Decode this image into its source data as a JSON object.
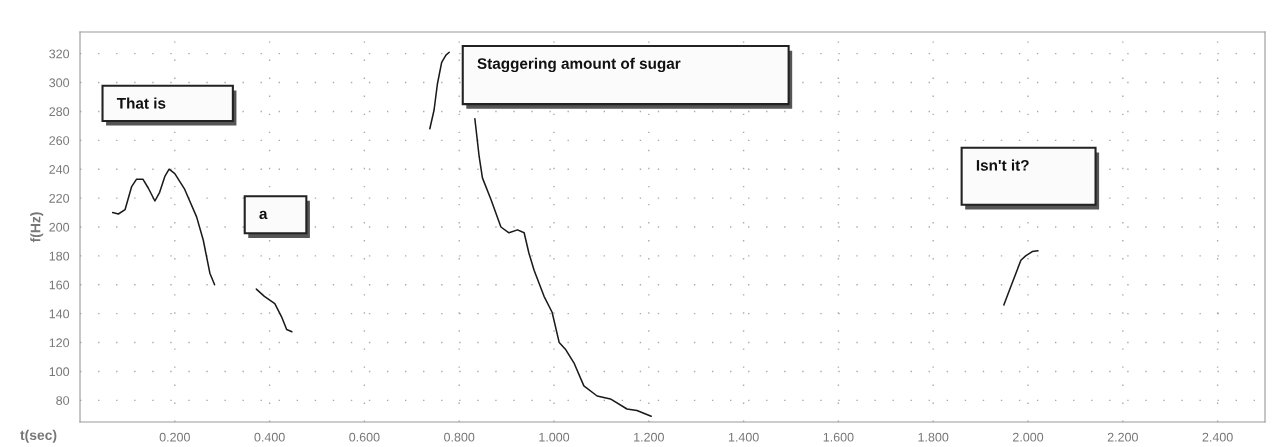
{
  "chart_data": {
    "type": "line",
    "xlabel": "t(sec)",
    "ylabel": "f(Hz)",
    "series": [
      {
        "color": "#1a1a1a",
        "x": [
          0.069,
          0.081,
          0.095,
          0.109,
          0.119,
          0.133,
          0.144,
          0.158,
          0.168,
          0.179,
          0.188,
          0.2,
          0.221,
          0.246,
          0.26,
          0.274,
          0.284
        ],
        "values": [
          210,
          209,
          212,
          228,
          233,
          233,
          227,
          218,
          224,
          235,
          240,
          237,
          226,
          207,
          191,
          168,
          160
        ]
      },
      {
        "color": "#1a1a1a",
        "x": [
          0.372,
          0.389,
          0.411,
          0.425,
          0.436,
          0.447
        ],
        "values": [
          157,
          152,
          147,
          138,
          129,
          127.5
        ]
      },
      {
        "color": "#1a1a1a",
        "x": [
          0.738,
          0.747,
          0.754,
          0.763,
          0.772,
          0.779
        ],
        "values": [
          268,
          281,
          299,
          314,
          319,
          321
        ]
      },
      {
        "color": "#1a1a1a",
        "x": [
          0.833,
          0.842,
          0.849,
          0.867,
          0.888,
          0.905,
          0.923,
          0.937,
          0.947,
          0.958,
          0.979,
          0.996,
          1.011,
          1.025,
          1.042,
          1.063,
          1.091,
          1.119,
          1.154,
          1.175,
          1.205
        ],
        "values": [
          275,
          249,
          234,
          219,
          200,
          196,
          198,
          196,
          182,
          170,
          152,
          141,
          120,
          115,
          106,
          90,
          83,
          81,
          74,
          73,
          69
        ]
      },
      {
        "color": "#1a1a1a",
        "x": [
          1.949,
          1.964,
          1.985,
          1.995,
          2.009,
          2.021
        ],
        "values": [
          146,
          159,
          177,
          180,
          183,
          183.5
        ]
      }
    ],
    "annotations": [
      "That is",
      "a",
      "Staggering amount of sugar",
      "Isn't it?"
    ],
    "xlim": [
      0,
      2.5
    ],
    "ylim": [
      65,
      335
    ],
    "xticks": [
      {
        "value": 0.2,
        "label": "0.200"
      },
      {
        "value": 0.4,
        "label": "0.400"
      },
      {
        "value": 0.6,
        "label": "0.600"
      },
      {
        "value": 0.8,
        "label": "0.800"
      },
      {
        "value": 1.0,
        "label": "1.000"
      },
      {
        "value": 1.2,
        "label": "1.200"
      },
      {
        "value": 1.4,
        "label": "1.400"
      },
      {
        "value": 1.6,
        "label": "1.600"
      },
      {
        "value": 1.8,
        "label": "1.800"
      },
      {
        "value": 2.0,
        "label": "2.000"
      },
      {
        "value": 2.2,
        "label": "2.200"
      },
      {
        "value": 2.4,
        "label": "2.400"
      }
    ],
    "yticks": [
      80,
      100,
      120,
      140,
      160,
      180,
      200,
      220,
      240,
      260,
      280,
      300,
      320
    ],
    "grid": true,
    "marker": "none",
    "line_style": "solid"
  }
}
